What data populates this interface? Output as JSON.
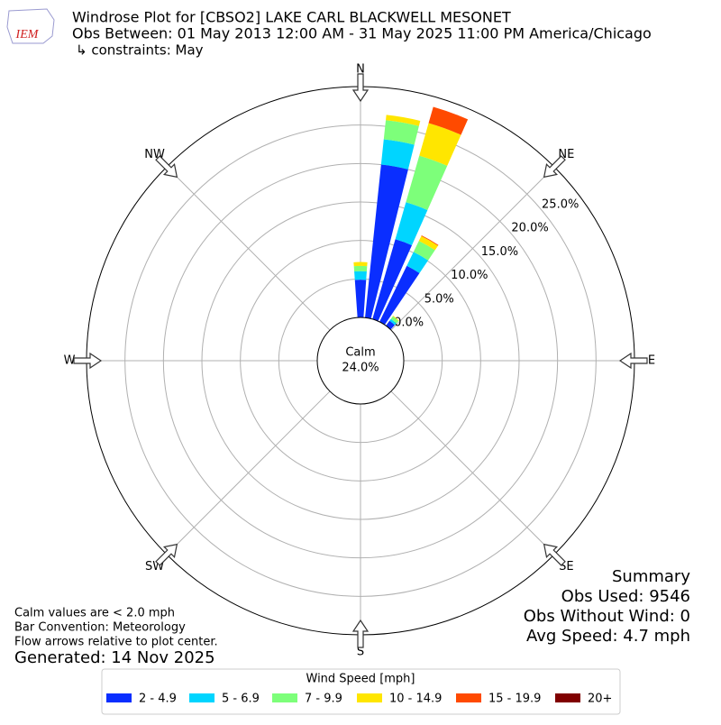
{
  "chart_data": {
    "type": "windrose",
    "logo_text": "IEM",
    "title": "Windrose Plot for [CBSO2] LAKE CARL BLACKWELL MESONET",
    "subtitle": "Obs Between: 01 May 2013 12:00 AM - 31 May 2025 11:00 PM America/Chicago",
    "constraints": "↳ constraints: May",
    "compass_labels": [
      "N",
      "NE",
      "E",
      "SE",
      "S",
      "SW",
      "W",
      "NW"
    ],
    "calm": {
      "label": "Calm",
      "value": 24.0,
      "value_label": "24.0%"
    },
    "rlim": [
      0,
      30
    ],
    "rticks": [
      {
        "value": 0,
        "label": "0.0%"
      },
      {
        "value": 5,
        "label": "5.0%"
      },
      {
        "value": 10,
        "label": "10.0%"
      },
      {
        "value": 15,
        "label": "15.0%"
      },
      {
        "value": 20,
        "label": "20.0%"
      },
      {
        "value": 25,
        "label": "25.0%"
      }
    ],
    "grid": true,
    "x": [
      0,
      10,
      20,
      30,
      40
    ],
    "series": [
      {
        "name": "2 - 4.9",
        "color": "#0a2eff",
        "values": [
          4.9,
          20.0,
          10.8,
          8.1,
          0.8
        ]
      },
      {
        "name": "5 - 6.9",
        "color": "#00d5ff",
        "values": [
          1.1,
          3.3,
          5.0,
          2.0,
          0.3
        ]
      },
      {
        "name": "7 - 9.9",
        "color": "#7dff7a",
        "values": [
          0.7,
          2.5,
          6.3,
          1.6,
          0.4
        ]
      },
      {
        "name": "10 - 14.9",
        "color": "#ffe600",
        "values": [
          0.5,
          0.7,
          4.4,
          0.7,
          0.1
        ]
      },
      {
        "name": "15 - 19.9",
        "color": "#ff4a00",
        "values": [
          0,
          0,
          2.2,
          0.1,
          0
        ]
      },
      {
        "name": "20+",
        "color": "#800000",
        "values": [
          0,
          0,
          0,
          0,
          0
        ]
      }
    ],
    "legend_title": "Wind Speed [mph]",
    "legend_position": "bottom",
    "summary": [
      "Summary",
      "Obs Used: 9546",
      "Obs Without Wind: 0",
      "Avg Speed: 4.7 mph"
    ],
    "notes": [
      "Calm values are < 2.0 mph",
      "Bar Convention: Meteorology",
      "Flow arrows relative to plot center."
    ],
    "generated": "Generated: 14 Nov 2025"
  }
}
